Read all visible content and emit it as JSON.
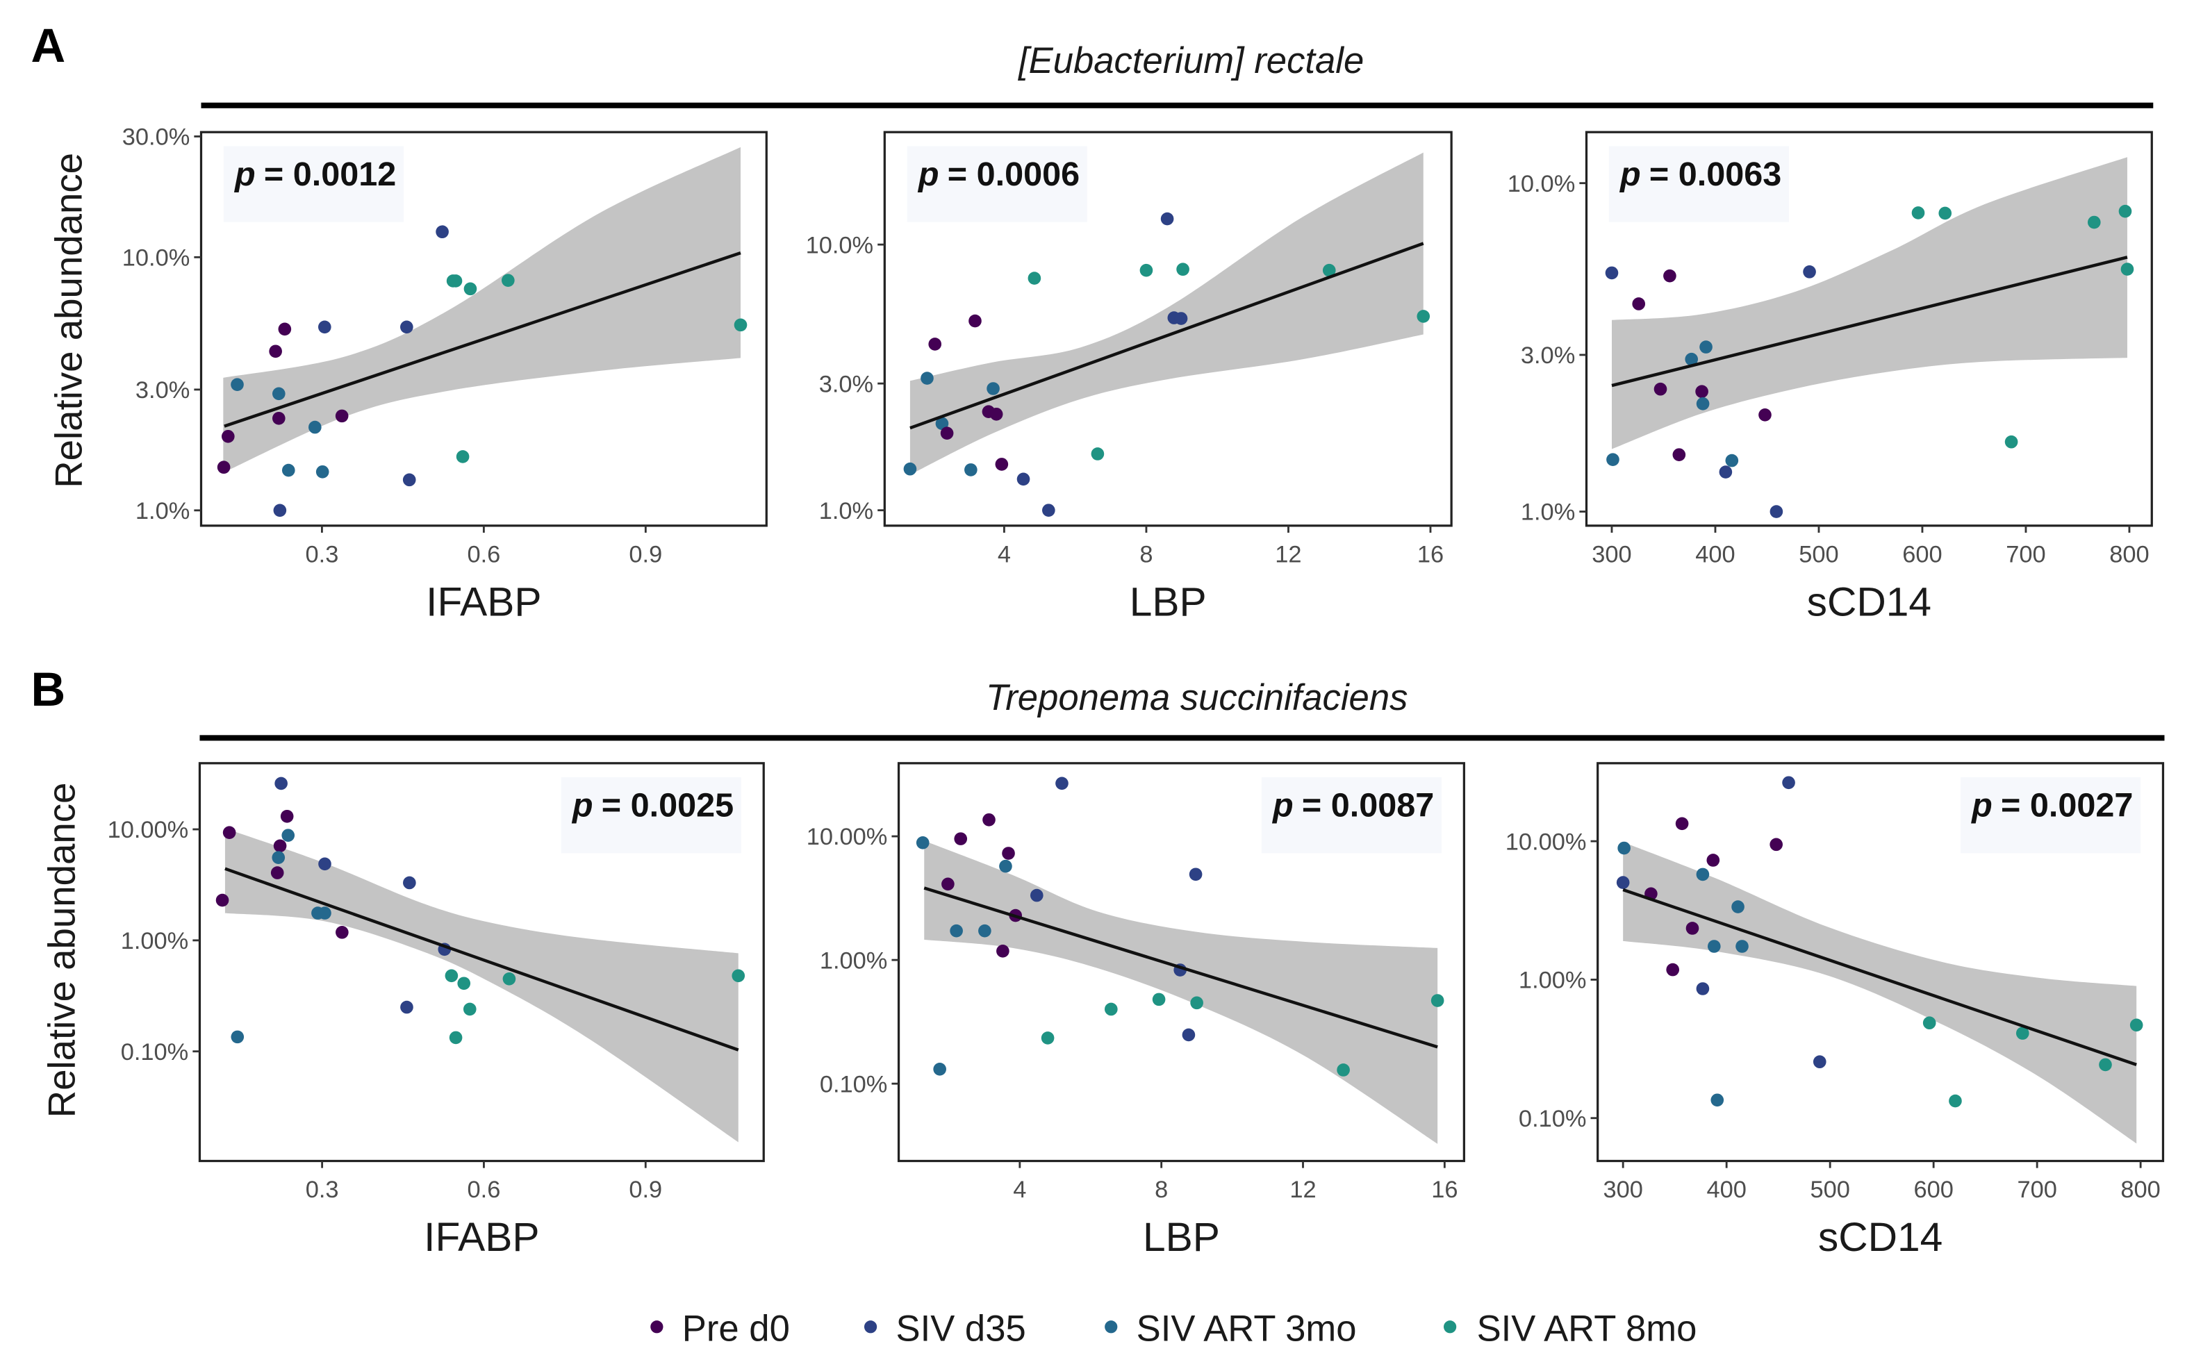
{
  "figure": {
    "panel_A_label": "A",
    "panel_B_label": "B",
    "title_A": "[Eubacterium] rectale",
    "title_B": "Treponema succinifaciens",
    "ylabel_A": "Relative abundance",
    "ylabel_B": "Relative abundance"
  },
  "legend": {
    "position": "bottom",
    "items": [
      {
        "label": "Pre d0",
        "color": "#440154"
      },
      {
        "label": "SIV d35",
        "color": "#2d4185"
      },
      {
        "label": "SIV ART 3mo",
        "color": "#24688d"
      },
      {
        "label": "SIV ART 8mo",
        "color": "#1f9383"
      }
    ]
  },
  "chart_data": [
    {
      "type": "scatter",
      "row": "A",
      "xlabel": "IFABP",
      "ylabel": "Relative abundance",
      "p_symbol": "p",
      "p_text": "= 0.0012",
      "yscale": "log",
      "xlim": [
        0.076,
        1.124
      ],
      "ylim": [
        0.87,
        31.2
      ],
      "xticks": [
        {
          "v": 0.3,
          "label": "0.3"
        },
        {
          "v": 0.6,
          "label": "0.6"
        },
        {
          "v": 0.9,
          "label": "0.9"
        }
      ],
      "yticks": [
        {
          "v": 1,
          "label": "1.0%"
        },
        {
          "v": 3,
          "label": "3.0%"
        },
        {
          "v": 10,
          "label": "10.0%"
        },
        {
          "v": 30,
          "label": "30.0%"
        }
      ],
      "points": [
        [
          0.523,
          12.6,
          1
        ],
        [
          0.543,
          8.06,
          3
        ],
        [
          0.548,
          8.06,
          3
        ],
        [
          0.575,
          7.5,
          3
        ],
        [
          0.645,
          8.1,
          3
        ],
        [
          1.076,
          5.4,
          3
        ],
        [
          0.231,
          5.2,
          0
        ],
        [
          0.305,
          5.3,
          1
        ],
        [
          0.457,
          5.3,
          1
        ],
        [
          0.214,
          4.25,
          0
        ],
        [
          0.143,
          3.14,
          2
        ],
        [
          0.22,
          2.89,
          2
        ],
        [
          0.22,
          2.31,
          0
        ],
        [
          0.337,
          2.36,
          0
        ],
        [
          0.287,
          2.13,
          2
        ],
        [
          0.126,
          1.96,
          0
        ],
        [
          0.118,
          1.48,
          0
        ],
        [
          0.238,
          1.44,
          2
        ],
        [
          0.301,
          1.42,
          2
        ],
        [
          0.561,
          1.63,
          3
        ],
        [
          0.462,
          1.32,
          1
        ],
        [
          0.222,
          1.0,
          1
        ]
      ],
      "fit": {
        "x": [
          0.119,
          1.076
        ],
        "y": [
          2.15,
          10.4
        ]
      },
      "ci": {
        "x": [
          0.117,
          0.346,
          0.532,
          0.811,
          1.076
        ],
        "lo": [
          1.41,
          2.36,
          2.96,
          3.55,
          4.0
        ],
        "hi": [
          3.34,
          4.07,
          6.13,
          14.8,
          27.2
        ]
      }
    },
    {
      "type": "scatter",
      "row": "A",
      "xlabel": "LBP",
      "ylabel": "",
      "p_symbol": "p",
      "p_text": "= 0.0006",
      "yscale": "log",
      "xlim": [
        0.634,
        16.59
      ],
      "ylim": [
        0.875,
        26.5
      ],
      "xticks": [
        {
          "v": 4,
          "label": "4"
        },
        {
          "v": 8,
          "label": "8"
        },
        {
          "v": 12,
          "label": "12"
        },
        {
          "v": 16,
          "label": "16"
        }
      ],
      "yticks": [
        {
          "v": 1,
          "label": "1.0%"
        },
        {
          "v": 3,
          "label": "3.0%"
        },
        {
          "v": 10,
          "label": "10.0%"
        }
      ],
      "points": [
        [
          8.59,
          12.5,
          1
        ],
        [
          8.0,
          8.0,
          3
        ],
        [
          9.03,
          8.07,
          3
        ],
        [
          4.85,
          7.47,
          3
        ],
        [
          13.15,
          8.0,
          3
        ],
        [
          15.8,
          5.37,
          3
        ],
        [
          8.78,
          5.3,
          1
        ],
        [
          8.98,
          5.27,
          1
        ],
        [
          3.18,
          5.16,
          0
        ],
        [
          2.05,
          4.22,
          0
        ],
        [
          1.83,
          3.14,
          2
        ],
        [
          3.69,
          2.87,
          2
        ],
        [
          3.56,
          2.35,
          0
        ],
        [
          3.78,
          2.3,
          0
        ],
        [
          2.25,
          2.12,
          2
        ],
        [
          2.39,
          1.95,
          0
        ],
        [
          6.63,
          1.63,
          3
        ],
        [
          1.35,
          1.43,
          2
        ],
        [
          3.06,
          1.42,
          2
        ],
        [
          3.93,
          1.49,
          0
        ],
        [
          4.54,
          1.31,
          1
        ],
        [
          5.25,
          1.0,
          1
        ]
      ],
      "fit": {
        "x": [
          1.35,
          15.8
        ],
        "y": [
          2.04,
          10.1
        ]
      },
      "ci": {
        "x": [
          1.35,
          3.65,
          6.15,
          8.65,
          12.4,
          15.8
        ],
        "lo": [
          1.36,
          1.94,
          2.62,
          3.12,
          3.7,
          4.59
        ],
        "hi": [
          3.07,
          3.6,
          4.1,
          5.85,
          12.7,
          22.2
        ]
      }
    },
    {
      "type": "scatter",
      "row": "A",
      "xlabel": "sCD14",
      "ylabel": "",
      "p_symbol": "p",
      "p_text": "= 0.0063",
      "yscale": "log",
      "xlim": [
        275.5,
        821.7
      ],
      "ylim": [
        0.906,
        14.3
      ],
      "xticks": [
        {
          "v": 300,
          "label": "300"
        },
        {
          "v": 400,
          "label": "400"
        },
        {
          "v": 500,
          "label": "500"
        },
        {
          "v": 600,
          "label": "600"
        },
        {
          "v": 700,
          "label": "700"
        },
        {
          "v": 800,
          "label": "800"
        }
      ],
      "yticks": [
        {
          "v": 1,
          "label": "1.0%"
        },
        {
          "v": 3,
          "label": "3.0%"
        },
        {
          "v": 10,
          "label": "10.0%"
        }
      ],
      "points": [
        [
          596,
          8.12,
          3
        ],
        [
          622,
          8.1,
          3
        ],
        [
          766,
          7.6,
          3
        ],
        [
          796,
          8.21,
          3
        ],
        [
          798,
          5.47,
          3
        ],
        [
          300,
          5.33,
          1
        ],
        [
          356,
          5.22,
          0
        ],
        [
          491,
          5.37,
          1
        ],
        [
          326,
          4.29,
          0
        ],
        [
          391,
          3.17,
          2
        ],
        [
          377,
          2.91,
          2
        ],
        [
          347,
          2.36,
          0
        ],
        [
          387,
          2.32,
          0
        ],
        [
          388,
          2.13,
          2
        ],
        [
          448,
          1.97,
          0
        ],
        [
          686,
          1.63,
          3
        ],
        [
          301,
          1.44,
          2
        ],
        [
          365,
          1.49,
          0
        ],
        [
          416,
          1.43,
          2
        ],
        [
          410,
          1.32,
          1
        ],
        [
          459,
          1.0,
          1
        ]
      ],
      "fit": {
        "x": [
          300,
          798
        ],
        "y": [
          2.42,
          5.95
        ]
      },
      "ci": {
        "x": [
          300,
          387,
          478,
          569,
          660,
          798
        ],
        "lo": [
          1.55,
          1.99,
          2.37,
          2.67,
          2.86,
          2.94
        ],
        "hi": [
          3.83,
          3.99,
          4.68,
          6.21,
          8.62,
          12.0
        ]
      }
    },
    {
      "type": "scatter",
      "row": "B",
      "xlabel": "IFABP",
      "ylabel": "Relative abundance",
      "p_symbol": "p",
      "p_text": "= 0.0025",
      "yscale": "log",
      "xlim": [
        0.073,
        1.119
      ],
      "ylim": [
        0.0103,
        39.4
      ],
      "xticks": [
        {
          "v": 0.3,
          "label": "0.3"
        },
        {
          "v": 0.6,
          "label": "0.6"
        },
        {
          "v": 0.9,
          "label": "0.9"
        }
      ],
      "yticks": [
        {
          "v": 0.1,
          "label": "0.10%"
        },
        {
          "v": 1,
          "label": "1.00%"
        },
        {
          "v": 10,
          "label": "10.00%"
        }
      ],
      "points": [
        [
          0.224,
          25.9,
          1
        ],
        [
          0.235,
          13.1,
          0
        ],
        [
          0.128,
          9.35,
          0
        ],
        [
          0.237,
          8.83,
          2
        ],
        [
          0.222,
          7.1,
          0
        ],
        [
          0.219,
          5.57,
          2
        ],
        [
          0.305,
          4.88,
          1
        ],
        [
          0.217,
          4.06,
          0
        ],
        [
          0.462,
          3.3,
          1
        ],
        [
          0.115,
          2.3,
          0
        ],
        [
          0.292,
          1.76,
          2
        ],
        [
          0.305,
          1.76,
          2
        ],
        [
          0.337,
          1.18,
          0
        ],
        [
          0.527,
          0.83,
          1
        ],
        [
          0.54,
          0.48,
          3
        ],
        [
          0.563,
          0.41,
          3
        ],
        [
          0.647,
          0.45,
          3
        ],
        [
          1.072,
          0.48,
          3
        ],
        [
          0.457,
          0.25,
          1
        ],
        [
          0.574,
          0.24,
          3
        ],
        [
          0.548,
          0.133,
          3
        ],
        [
          0.143,
          0.135,
          2
        ]
      ],
      "fit": {
        "x": [
          0.12,
          1.072
        ],
        "y": [
          4.42,
          0.103
        ]
      },
      "ci": {
        "x": [
          0.12,
          0.303,
          0.485,
          0.616,
          0.798,
          1.072
        ],
        "lo": [
          1.76,
          1.49,
          0.8,
          0.41,
          0.127,
          0.0152
        ],
        "hi": [
          10.2,
          5.0,
          2.17,
          1.43,
          1.03,
          0.766
        ]
      }
    },
    {
      "type": "scatter",
      "row": "B",
      "xlabel": "LBP",
      "ylabel": "",
      "p_symbol": "p",
      "p_text": "= 0.0087",
      "yscale": "log",
      "xlim": [
        0.58,
        16.55
      ],
      "ylim": [
        0.0237,
        39
      ],
      "xticks": [
        {
          "v": 4,
          "label": "4"
        },
        {
          "v": 8,
          "label": "8"
        },
        {
          "v": 12,
          "label": "12"
        },
        {
          "v": 16,
          "label": "16"
        }
      ],
      "yticks": [
        {
          "v": 0.1,
          "label": "0.10%"
        },
        {
          "v": 1,
          "label": "1.00%"
        },
        {
          "v": 10,
          "label": "10.00%"
        }
      ],
      "points": [
        [
          5.19,
          26.8,
          1
        ],
        [
          3.13,
          13.6,
          0
        ],
        [
          2.33,
          9.55,
          0
        ],
        [
          1.26,
          8.87,
          2
        ],
        [
          3.68,
          7.29,
          0
        ],
        [
          3.6,
          5.73,
          2
        ],
        [
          8.97,
          4.93,
          1
        ],
        [
          1.97,
          4.11,
          0
        ],
        [
          4.48,
          3.33,
          1
        ],
        [
          3.88,
          2.29,
          0
        ],
        [
          2.21,
          1.72,
          2
        ],
        [
          3.01,
          1.72,
          2
        ],
        [
          3.52,
          1.18,
          0
        ],
        [
          8.53,
          0.83,
          1
        ],
        [
          7.93,
          0.48,
          3
        ],
        [
          9.0,
          0.45,
          3
        ],
        [
          6.58,
          0.4,
          3
        ],
        [
          15.8,
          0.47,
          3
        ],
        [
          8.77,
          0.248,
          1
        ],
        [
          4.79,
          0.234,
          3
        ],
        [
          13.14,
          0.129,
          3
        ],
        [
          1.74,
          0.131,
          2
        ]
      ],
      "fit": {
        "x": [
          1.3,
          15.8
        ],
        "y": [
          3.82,
          0.198
        ]
      },
      "ci": {
        "x": [
          1.3,
          3.8,
          6.19,
          8.97,
          12.1,
          15.8
        ],
        "lo": [
          1.46,
          1.25,
          0.86,
          0.44,
          0.164,
          0.0326
        ],
        "hi": [
          9.2,
          4.86,
          2.47,
          1.69,
          1.4,
          1.25
        ]
      }
    },
    {
      "type": "scatter",
      "row": "B",
      "xlabel": "sCD14",
      "ylabel": "",
      "p_symbol": "p",
      "p_text": "= 0.0027",
      "yscale": "log",
      "xlim": [
        275.5,
        821.7
      ],
      "ylim": [
        0.049,
        36.6
      ],
      "xticks": [
        {
          "v": 300,
          "label": "300"
        },
        {
          "v": 400,
          "label": "400"
        },
        {
          "v": 500,
          "label": "500"
        },
        {
          "v": 600,
          "label": "600"
        },
        {
          "v": 700,
          "label": "700"
        },
        {
          "v": 800,
          "label": "800"
        }
      ],
      "yticks": [
        {
          "v": 0.1,
          "label": "0.10%"
        },
        {
          "v": 1,
          "label": "1.00%"
        },
        {
          "v": 10,
          "label": "10.00%"
        }
      ],
      "points": [
        [
          460,
          26.5,
          1
        ],
        [
          357,
          13.4,
          0
        ],
        [
          448,
          9.47,
          0
        ],
        [
          301,
          8.92,
          2
        ],
        [
          387,
          7.29,
          0
        ],
        [
          377,
          5.76,
          2
        ],
        [
          300,
          5.03,
          1
        ],
        [
          327,
          4.17,
          0
        ],
        [
          411,
          3.36,
          2
        ],
        [
          367,
          2.35,
          0
        ],
        [
          388,
          1.74,
          2
        ],
        [
          415,
          1.74,
          2
        ],
        [
          348,
          1.18,
          0
        ],
        [
          377,
          0.86,
          1
        ],
        [
          596,
          0.487,
          3
        ],
        [
          686,
          0.41,
          3
        ],
        [
          796,
          0.47,
          3
        ],
        [
          490,
          0.255,
          1
        ],
        [
          766,
          0.243,
          3
        ],
        [
          391,
          0.135,
          2
        ],
        [
          621,
          0.133,
          3
        ]
      ],
      "fit": {
        "x": [
          300,
          796
        ],
        "y": [
          4.46,
          0.243
        ]
      },
      "ci": {
        "x": [
          300,
          390,
          498,
          607,
          702,
          796
        ],
        "lo": [
          1.9,
          1.6,
          1.07,
          0.48,
          0.199,
          0.0655
        ],
        "hi": [
          9.86,
          5.38,
          2.4,
          1.35,
          1.03,
          0.9
        ]
      }
    }
  ]
}
